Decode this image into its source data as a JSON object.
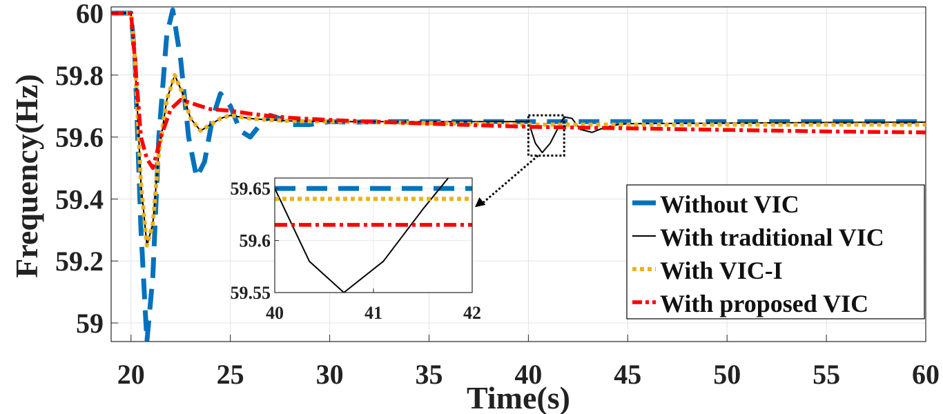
{
  "chart_data": {
    "type": "line",
    "xlabel": "Time(s)",
    "ylabel": "Frequency(Hz)",
    "xlim": [
      19,
      60
    ],
    "ylim": [
      58.94,
      60.02
    ],
    "x_ticks": [
      "20",
      "25",
      "30",
      "35",
      "40",
      "45",
      "50",
      "55",
      "60"
    ],
    "y_ticks": [
      "59",
      "59.2",
      "59.4",
      "59.6",
      "59.8",
      "60"
    ],
    "grid": true,
    "legend_position": "bottom-right",
    "series": [
      {
        "name": "Without VIC",
        "color": "#0072BD",
        "style": "dashed",
        "x": [
          19,
          20,
          20.2,
          20.5,
          20.8,
          21.1,
          21.4,
          21.8,
          22.1,
          22.5,
          22.9,
          23.3,
          23.7,
          24.1,
          24.5,
          25,
          25.5,
          26,
          26.5,
          27,
          27.5,
          28,
          29,
          30,
          31,
          33,
          36,
          40,
          45,
          50,
          55,
          60
        ],
        "y": [
          60,
          60,
          59.85,
          59.3,
          58.94,
          59.15,
          59.6,
          59.93,
          60.01,
          59.85,
          59.6,
          59.47,
          59.52,
          59.66,
          59.74,
          59.7,
          59.62,
          59.6,
          59.64,
          59.67,
          59.66,
          59.64,
          59.64,
          59.65,
          59.648,
          59.65,
          59.65,
          59.65,
          59.65,
          59.65,
          59.65,
          59.65
        ]
      },
      {
        "name": "With traditional VIC",
        "color": "#000000",
        "style": "solid",
        "x": [
          19,
          20,
          20.2,
          20.5,
          20.8,
          21.1,
          21.4,
          21.8,
          22.2,
          22.6,
          23,
          23.5,
          24,
          24.5,
          25,
          26,
          27,
          28,
          30,
          32,
          35,
          38,
          40,
          40.35,
          40.7,
          41.1,
          41.5,
          41.8,
          42.2,
          42.6,
          43.2,
          43.8,
          44.5,
          45,
          50,
          55,
          60
        ],
        "y": [
          60,
          60,
          59.85,
          59.45,
          59.25,
          59.32,
          59.55,
          59.72,
          59.8,
          59.74,
          59.66,
          59.62,
          59.64,
          59.66,
          59.67,
          59.66,
          59.655,
          59.652,
          59.65,
          59.65,
          59.65,
          59.65,
          59.65,
          59.58,
          59.55,
          59.58,
          59.63,
          59.665,
          59.66,
          59.625,
          59.615,
          59.63,
          59.64,
          59.643,
          59.645,
          59.647,
          59.648
        ]
      },
      {
        "name": "With VIC-I",
        "color": "#EDB120",
        "style": "dotted",
        "x": [
          19,
          20,
          20.2,
          20.5,
          20.8,
          21.1,
          21.4,
          21.8,
          22.2,
          22.6,
          23,
          23.5,
          24,
          24.5,
          25,
          26,
          27,
          28,
          30,
          35,
          40,
          45,
          50,
          55,
          60
        ],
        "y": [
          60,
          60,
          59.85,
          59.45,
          59.25,
          59.32,
          59.55,
          59.72,
          59.8,
          59.74,
          59.66,
          59.62,
          59.64,
          59.66,
          59.67,
          59.66,
          59.655,
          59.652,
          59.65,
          59.645,
          59.64,
          59.64,
          59.64,
          59.64,
          59.64
        ]
      },
      {
        "name": "With proposed VIC",
        "color": "#FF0000",
        "style": "dashdot",
        "x": [
          19,
          20,
          20.2,
          20.5,
          20.8,
          21.1,
          21.5,
          22,
          22.5,
          23,
          23.5,
          24,
          25,
          26,
          27,
          28,
          30,
          35,
          40,
          45,
          50,
          55,
          60
        ],
        "y": [
          60,
          60,
          59.85,
          59.6,
          59.53,
          59.5,
          59.6,
          59.69,
          59.72,
          59.71,
          59.7,
          59.69,
          59.685,
          59.675,
          59.668,
          59.662,
          59.655,
          59.643,
          59.633,
          59.628,
          59.623,
          59.618,
          59.615
        ]
      }
    ],
    "inset": {
      "xlim": [
        40,
        42
      ],
      "ylim": [
        59.55,
        59.66
      ],
      "x_ticks": [
        "40",
        "41",
        "42"
      ],
      "y_ticks": [
        "59.55",
        "59.6",
        "59.65"
      ],
      "x_ticks_values": [
        40,
        41,
        42
      ],
      "y_ticks_values": [
        59.55,
        59.6,
        59.65
      ],
      "highlight_region": {
        "x": [
          40,
          41.8
        ],
        "y": [
          59.54,
          59.67
        ]
      }
    }
  }
}
